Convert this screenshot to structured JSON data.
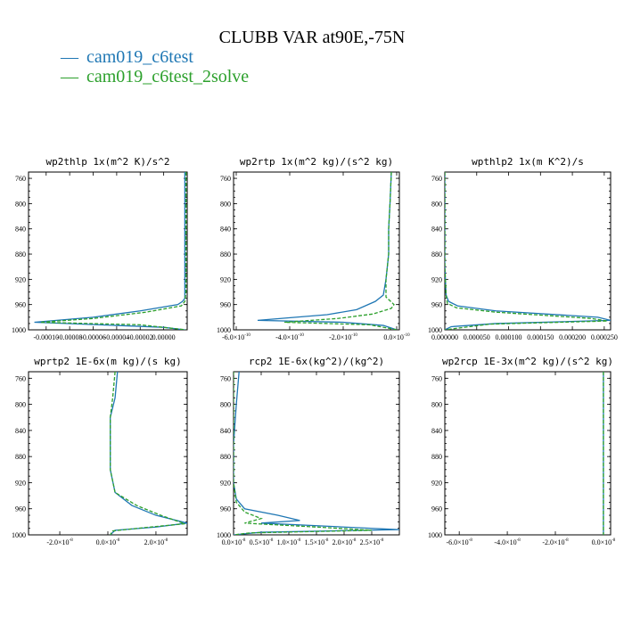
{
  "figure_title": "CLUBB VAR at90E,-75N",
  "colors": {
    "series1": "#1f77b4",
    "series2": "#2ca02c"
  },
  "legend": [
    {
      "marker": "—",
      "label": "cam019_c6test"
    },
    {
      "marker": "—",
      "label": "cam019_c6test_2solve"
    }
  ],
  "chart_data": [
    {
      "type": "line",
      "title": "wp2thlp   1x(m^2 K)/s^2",
      "ylim": [
        1000,
        750
      ],
      "xlim": [
        -0.000115,
        2e-05
      ],
      "yticks": [
        "760",
        "800",
        "840",
        "880",
        "920",
        "960",
        "1000"
      ],
      "yticks_values": [
        760,
        800,
        840,
        880,
        920,
        960,
        1000
      ],
      "xticks": [
        "-0.00010",
        "-0.00008",
        "-0.00006",
        "-0.00004",
        "-0.00002",
        "0.00000"
      ],
      "xticks_values": [
        -0.0001,
        -8e-05,
        -6e-05,
        -4e-05,
        -2e-05,
        0.0
      ],
      "series": [
        {
          "name": "cam019_c6test",
          "points": [
            [
              1.8e-05,
              750
            ],
            [
              1.8e-05,
              880
            ],
            [
              1.8e-05,
              940
            ],
            [
              1.8e-05,
              950
            ],
            [
              1.6e-05,
              955
            ],
            [
              1.2e-05,
              960
            ],
            [
              -2e-05,
              970
            ],
            [
              -6e-05,
              980
            ],
            [
              -0.00011,
              988
            ],
            [
              0.0,
              996
            ],
            [
              1.8e-05,
              1000
            ]
          ]
        },
        {
          "name": "cam019_c6test_2solve",
          "points": [
            [
              1.9e-05,
              750
            ],
            [
              1.9e-05,
              880
            ],
            [
              1.9e-05,
              940
            ],
            [
              1.8e-05,
              955
            ],
            [
              1.5e-05,
              962
            ],
            [
              -1.5e-05,
              972
            ],
            [
              -6e-05,
              982
            ],
            [
              -0.000105,
              988
            ],
            [
              -2e-05,
              992
            ],
            [
              1.9e-05,
              1000
            ]
          ]
        }
      ]
    },
    {
      "type": "line",
      "title": "wp2rtp   1x(m^2 kg)/(s^2 kg)",
      "ylim": [
        1000,
        750
      ],
      "xlim": [
        -6.1e-10,
        1e-11
      ],
      "yticks": [
        "760",
        "800",
        "840",
        "880",
        "920",
        "960",
        "1000"
      ],
      "yticks_values": [
        760,
        800,
        840,
        880,
        920,
        960,
        1000
      ],
      "xticks": [
        "-6.0×10",
        "-4.0×10",
        "-2.0×10",
        "0.0×10"
      ],
      "xticks_exp": "-10",
      "xticks_values": [
        -6e-10,
        -4e-10,
        -2e-10,
        0.0
      ],
      "series": [
        {
          "name": "cam019_c6test",
          "points": [
            [
              -2e-11,
              750
            ],
            [
              -2.5e-11,
              800
            ],
            [
              -3e-11,
              840
            ],
            [
              -3e-11,
              880
            ],
            [
              -4e-11,
              920
            ],
            [
              -5e-11,
              945
            ],
            [
              -8e-11,
              955
            ],
            [
              -1.5e-10,
              968
            ],
            [
              -2.6e-10,
              976
            ],
            [
              -5.2e-10,
              985
            ],
            [
              -2e-10,
              988
            ],
            [
              -5e-11,
              993
            ],
            [
              0.0,
              1000
            ]
          ]
        },
        {
          "name": "cam019_c6test_2solve",
          "points": [
            [
              -2e-11,
              750
            ],
            [
              -2.5e-11,
              800
            ],
            [
              -3e-11,
              840
            ],
            [
              -3e-11,
              880
            ],
            [
              -4e-11,
              920
            ],
            [
              -4e-11,
              948
            ],
            [
              -1e-11,
              960
            ],
            [
              -2e-11,
              966
            ],
            [
              -9e-11,
              975
            ],
            [
              -2.2e-10,
              982
            ],
            [
              -4.2e-10,
              988
            ],
            [
              -1e-10,
              992
            ],
            [
              0.0,
              1000
            ]
          ]
        }
      ]
    },
    {
      "type": "line",
      "title": "wpthlp2   1x(m K^2)/s",
      "ylim": [
        1000,
        750
      ],
      "xlim": [
        0.0,
        0.00026
      ],
      "yticks": [
        "760",
        "800",
        "840",
        "880",
        "920",
        "960",
        "1000"
      ],
      "yticks_values": [
        760,
        800,
        840,
        880,
        920,
        960,
        1000
      ],
      "xticks": [
        "0.000000",
        "0.000050",
        "0.000100",
        "0.000150",
        "0.000200",
        "0.000250"
      ],
      "xticks_values": [
        0.0,
        5e-05,
        0.0001,
        0.00015,
        0.0002,
        0.00025
      ],
      "series": [
        {
          "name": "cam019_c6test",
          "points": [
            [
              0.0,
              750
            ],
            [
              0.0,
              900
            ],
            [
              2e-06,
              945
            ],
            [
              6e-06,
              955
            ],
            [
              2e-05,
              962
            ],
            [
              8e-05,
              970
            ],
            [
              0.00024,
              980
            ],
            [
              0.00026,
              985
            ],
            [
              8e-05,
              990
            ],
            [
              1e-05,
              995
            ],
            [
              0.0,
              1000
            ]
          ]
        },
        {
          "name": "cam019_c6test_2solve",
          "points": [
            [
              0.0,
              750
            ],
            [
              0.0,
              900
            ],
            [
              2e-06,
              945
            ],
            [
              4e-06,
              958
            ],
            [
              1.8e-05,
              965
            ],
            [
              8e-05,
              972
            ],
            [
              0.00023,
              982
            ],
            [
              0.000255,
              986
            ],
            [
              7e-05,
              991
            ],
            [
              0.0,
              1000
            ]
          ]
        }
      ]
    },
    {
      "type": "line",
      "title": "wprtp2   1E-6x(m kg)/(s kg)",
      "ylim": [
        1000,
        750
      ],
      "xlim": [
        -3.3e-08,
        3.3e-08
      ],
      "yticks": [
        "760",
        "800",
        "840",
        "880",
        "920",
        "960",
        "1000"
      ],
      "yticks_values": [
        760,
        800,
        840,
        880,
        920,
        960,
        1000
      ],
      "xticks": [
        "-2.0×10",
        "0.0×10",
        "2.0×10"
      ],
      "xticks_exp": "-8",
      "xticks_values": [
        -2e-08,
        0.0,
        2e-08
      ],
      "series": [
        {
          "name": "cam019_c6test",
          "points": [
            [
              4e-09,
              750
            ],
            [
              3e-09,
              790
            ],
            [
              1e-09,
              820
            ],
            [
              1e-09,
              860
            ],
            [
              1e-09,
              900
            ],
            [
              3e-09,
              935
            ],
            [
              1e-08,
              955
            ],
            [
              2e-08,
              970
            ],
            [
              3.3e-08,
              982
            ],
            [
              2e-08,
              988
            ],
            [
              3e-09,
              993
            ],
            [
              1e-09,
              1000
            ]
          ]
        },
        {
          "name": "cam019_c6test_2solve",
          "points": [
            [
              3e-09,
              750
            ],
            [
              2e-09,
              790
            ],
            [
              1e-09,
              820
            ],
            [
              1e-09,
              860
            ],
            [
              1e-09,
              900
            ],
            [
              3e-09,
              935
            ],
            [
              1.2e-08,
              955
            ],
            [
              2.2e-08,
              970
            ],
            [
              3.2e-08,
              983
            ],
            [
              1.5e-08,
              989
            ],
            [
              2e-09,
              994
            ],
            [
              1e-09,
              1000
            ]
          ]
        }
      ]
    },
    {
      "type": "line",
      "title": "rcp2   1E-6x(kg^2)/(kg^2)",
      "ylim": [
        1000,
        750
      ],
      "xlim": [
        0.0,
        3e-08
      ],
      "yticks": [
        "760",
        "800",
        "840",
        "880",
        "920",
        "960",
        "1000"
      ],
      "yticks_values": [
        760,
        800,
        840,
        880,
        920,
        960,
        1000
      ],
      "xticks": [
        "0.0×10",
        "0.5×10",
        "1.0×10",
        "1.5×10",
        "2.0×10",
        "2.5×10"
      ],
      "xticks_exp": "-8",
      "xticks_values": [
        0.0,
        5e-09,
        1e-08,
        1.5e-08,
        2e-08,
        2.5e-08
      ],
      "series": [
        {
          "name": "cam019_c6test",
          "points": [
            [
              1e-09,
              750
            ],
            [
              5e-10,
              800
            ],
            [
              0.0,
              860
            ],
            [
              0.0,
              920
            ],
            [
              5e-10,
              945
            ],
            [
              2e-09,
              960
            ],
            [
              8e-09,
              970
            ],
            [
              1.2e-08,
              978
            ],
            [
              5e-09,
              982
            ],
            [
              3e-08,
              992
            ],
            [
              5e-09,
              996
            ],
            [
              0.0,
              1000
            ]
          ]
        },
        {
          "name": "cam019_c6test_2solve",
          "points": [
            [
              0.0,
              750
            ],
            [
              0.0,
              800
            ],
            [
              0.0,
              860
            ],
            [
              0.0,
              920
            ],
            [
              5e-10,
              950
            ],
            [
              2e-09,
              965
            ],
            [
              5e-09,
              975
            ],
            [
              2e-09,
              982
            ],
            [
              1.5e-08,
              988
            ],
            [
              2.5e-08,
              993
            ],
            [
              3e-09,
              997
            ],
            [
              0.0,
              1000
            ]
          ]
        }
      ]
    },
    {
      "type": "line",
      "title": "wp2rcp   1E-3x(m^2 kg)/(s^2 kg)",
      "ylim": [
        1000,
        750
      ],
      "xlim": [
        -6.6e-08,
        3e-09
      ],
      "yticks": [
        "760",
        "800",
        "840",
        "880",
        "920",
        "960",
        "1000"
      ],
      "yticks_values": [
        760,
        800,
        840,
        880,
        920,
        960,
        1000
      ],
      "xticks": [
        "-6.0×10",
        "-4.0×10",
        "-2.0×10",
        "0.0×10"
      ],
      "xticks_exp": "-8",
      "xticks_values": [
        -6e-08,
        -4e-08,
        -2e-08,
        0.0
      ],
      "series": [
        {
          "name": "cam019_c6test",
          "points": [
            [
              0.0,
              750
            ],
            [
              0.0,
              800
            ],
            [
              0.0,
              900
            ],
            [
              0.0,
              1000
            ]
          ]
        },
        {
          "name": "cam019_c6test_2solve",
          "points": [
            [
              0.0,
              750
            ],
            [
              0.0,
              800
            ],
            [
              0.0,
              900
            ],
            [
              0.0,
              1000
            ]
          ]
        }
      ]
    }
  ]
}
